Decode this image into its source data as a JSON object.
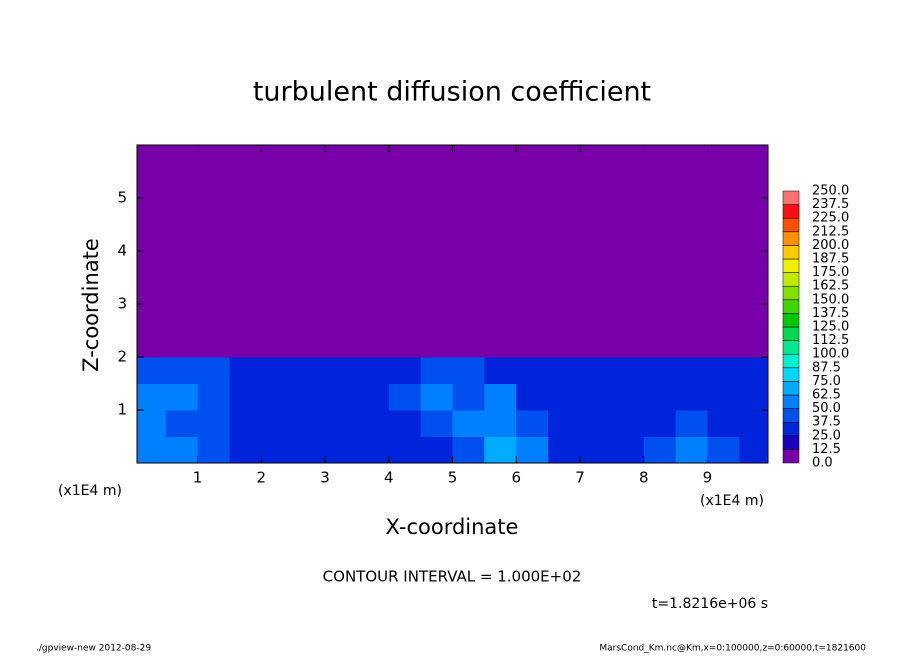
{
  "chart_data": {
    "type": "heatmap",
    "title": "turbulent diffusion coefficient",
    "x_label": "X-coordinate",
    "y_label": "Z-coordinate",
    "x_unit": "(x1E4 m)",
    "xlim": [
      0.05,
      9.95
    ],
    "ylim": [
      0,
      6
    ],
    "xticks": [
      1,
      2,
      3,
      4,
      5,
      6,
      7,
      8,
      9
    ],
    "yticks": [
      1,
      2,
      3,
      4,
      5
    ],
    "x": [
      0.25,
      0.75,
      1.25,
      1.75,
      2.25,
      2.75,
      3.25,
      3.75,
      4.25,
      4.75,
      5.25,
      5.75,
      6.25,
      6.75,
      7.25,
      7.75,
      8.25,
      8.75,
      9.25,
      9.75
    ],
    "y": [
      0.25,
      0.75,
      1.25,
      1.75,
      2.25,
      2.75,
      3.25,
      3.75,
      4.25,
      4.75,
      5.25,
      5.75
    ],
    "z": [
      [
        55,
        50,
        40,
        35,
        30,
        30,
        30,
        35,
        30,
        30,
        45,
        70,
        55,
        35,
        30,
        30,
        40,
        55,
        40,
        30
      ],
      [
        60,
        45,
        40,
        30,
        30,
        35,
        30,
        30,
        35,
        40,
        50,
        60,
        45,
        35,
        30,
        30,
        35,
        45,
        35,
        30
      ],
      [
        50,
        55,
        45,
        35,
        30,
        30,
        30,
        35,
        40,
        55,
        45,
        55,
        35,
        30,
        35,
        30,
        30,
        35,
        30,
        35
      ],
      [
        40,
        45,
        40,
        30,
        25,
        25,
        25,
        30,
        35,
        45,
        40,
        35,
        30,
        25,
        30,
        25,
        25,
        25,
        25,
        30
      ],
      [
        0,
        0,
        0,
        0,
        0,
        0,
        0,
        0,
        0,
        0,
        0,
        0,
        0,
        0,
        0,
        0,
        0,
        0,
        0,
        0
      ],
      [
        0,
        0,
        0,
        0,
        0,
        0,
        0,
        0,
        0,
        0,
        0,
        0,
        0,
        0,
        0,
        0,
        0,
        0,
        0,
        0
      ],
      [
        0,
        0,
        0,
        0,
        0,
        0,
        0,
        0,
        0,
        0,
        0,
        0,
        0,
        0,
        0,
        0,
        0,
        0,
        0,
        0
      ],
      [
        0,
        0,
        0,
        0,
        0,
        0,
        0,
        0,
        0,
        0,
        0,
        0,
        0,
        0,
        0,
        0,
        0,
        0,
        0,
        0
      ],
      [
        0,
        0,
        0,
        0,
        0,
        0,
        0,
        0,
        0,
        0,
        0,
        0,
        0,
        0,
        0,
        0,
        0,
        0,
        0,
        0
      ],
      [
        0,
        0,
        0,
        0,
        0,
        0,
        0,
        0,
        0,
        0,
        0,
        0,
        0,
        0,
        0,
        0,
        0,
        0,
        0,
        0
      ],
      [
        0,
        0,
        0,
        0,
        0,
        0,
        0,
        0,
        0,
        0,
        0,
        0,
        0,
        0,
        0,
        0,
        0,
        0,
        0,
        0
      ],
      [
        0,
        0,
        0,
        0,
        0,
        0,
        0,
        0,
        0,
        0,
        0,
        0,
        0,
        0,
        0,
        0,
        0,
        0,
        0,
        0
      ]
    ],
    "colorbar": {
      "ticks": [
        {
          "value": 0,
          "label": "0.0"
        },
        {
          "value": 12.5,
          "label": "12.5"
        },
        {
          "value": 25,
          "label": "25.0"
        },
        {
          "value": 37.5,
          "label": "37.5"
        },
        {
          "value": 50,
          "label": "50.0"
        },
        {
          "value": 62.5,
          "label": "62.5"
        },
        {
          "value": 75,
          "label": "75.0"
        },
        {
          "value": 87.5,
          "label": "87.5"
        },
        {
          "value": 100,
          "label": "100.0"
        },
        {
          "value": 112.5,
          "label": "112.5"
        },
        {
          "value": 125,
          "label": "125.0"
        },
        {
          "value": 137.5,
          "label": "137.5"
        },
        {
          "value": 150,
          "label": "150.0"
        },
        {
          "value": 162.5,
          "label": "162.5"
        },
        {
          "value": 175,
          "label": "175.0"
        },
        {
          "value": 187.5,
          "label": "187.5"
        },
        {
          "value": 200,
          "label": "200.0"
        },
        {
          "value": 212.5,
          "label": "212.5"
        },
        {
          "value": 225,
          "label": "225.0"
        },
        {
          "value": 237.5,
          "label": "237.5"
        },
        {
          "value": 250,
          "label": "250.0"
        }
      ],
      "colors": [
        "#7800a8",
        "#1a00c0",
        "#0024dc",
        "#0050f0",
        "#0080ff",
        "#00acff",
        "#00d8ff",
        "#00f0d0",
        "#00e890",
        "#00d850",
        "#00c800",
        "#40d400",
        "#80e000",
        "#c0ec00",
        "#f0f000",
        "#ffc800",
        "#ff9000",
        "#ff5000",
        "#ff1010",
        "#ff7070"
      ]
    },
    "contour_interval": "CONTOUR INTERVAL = 1.000E+02",
    "time": "t=1.8216e+06 s",
    "footer_left": "./gpview-new  2012-08-29",
    "footer_right": "MarsCond_Km.nc@Km,x=0:100000,z=0:60000,t=1821600"
  }
}
